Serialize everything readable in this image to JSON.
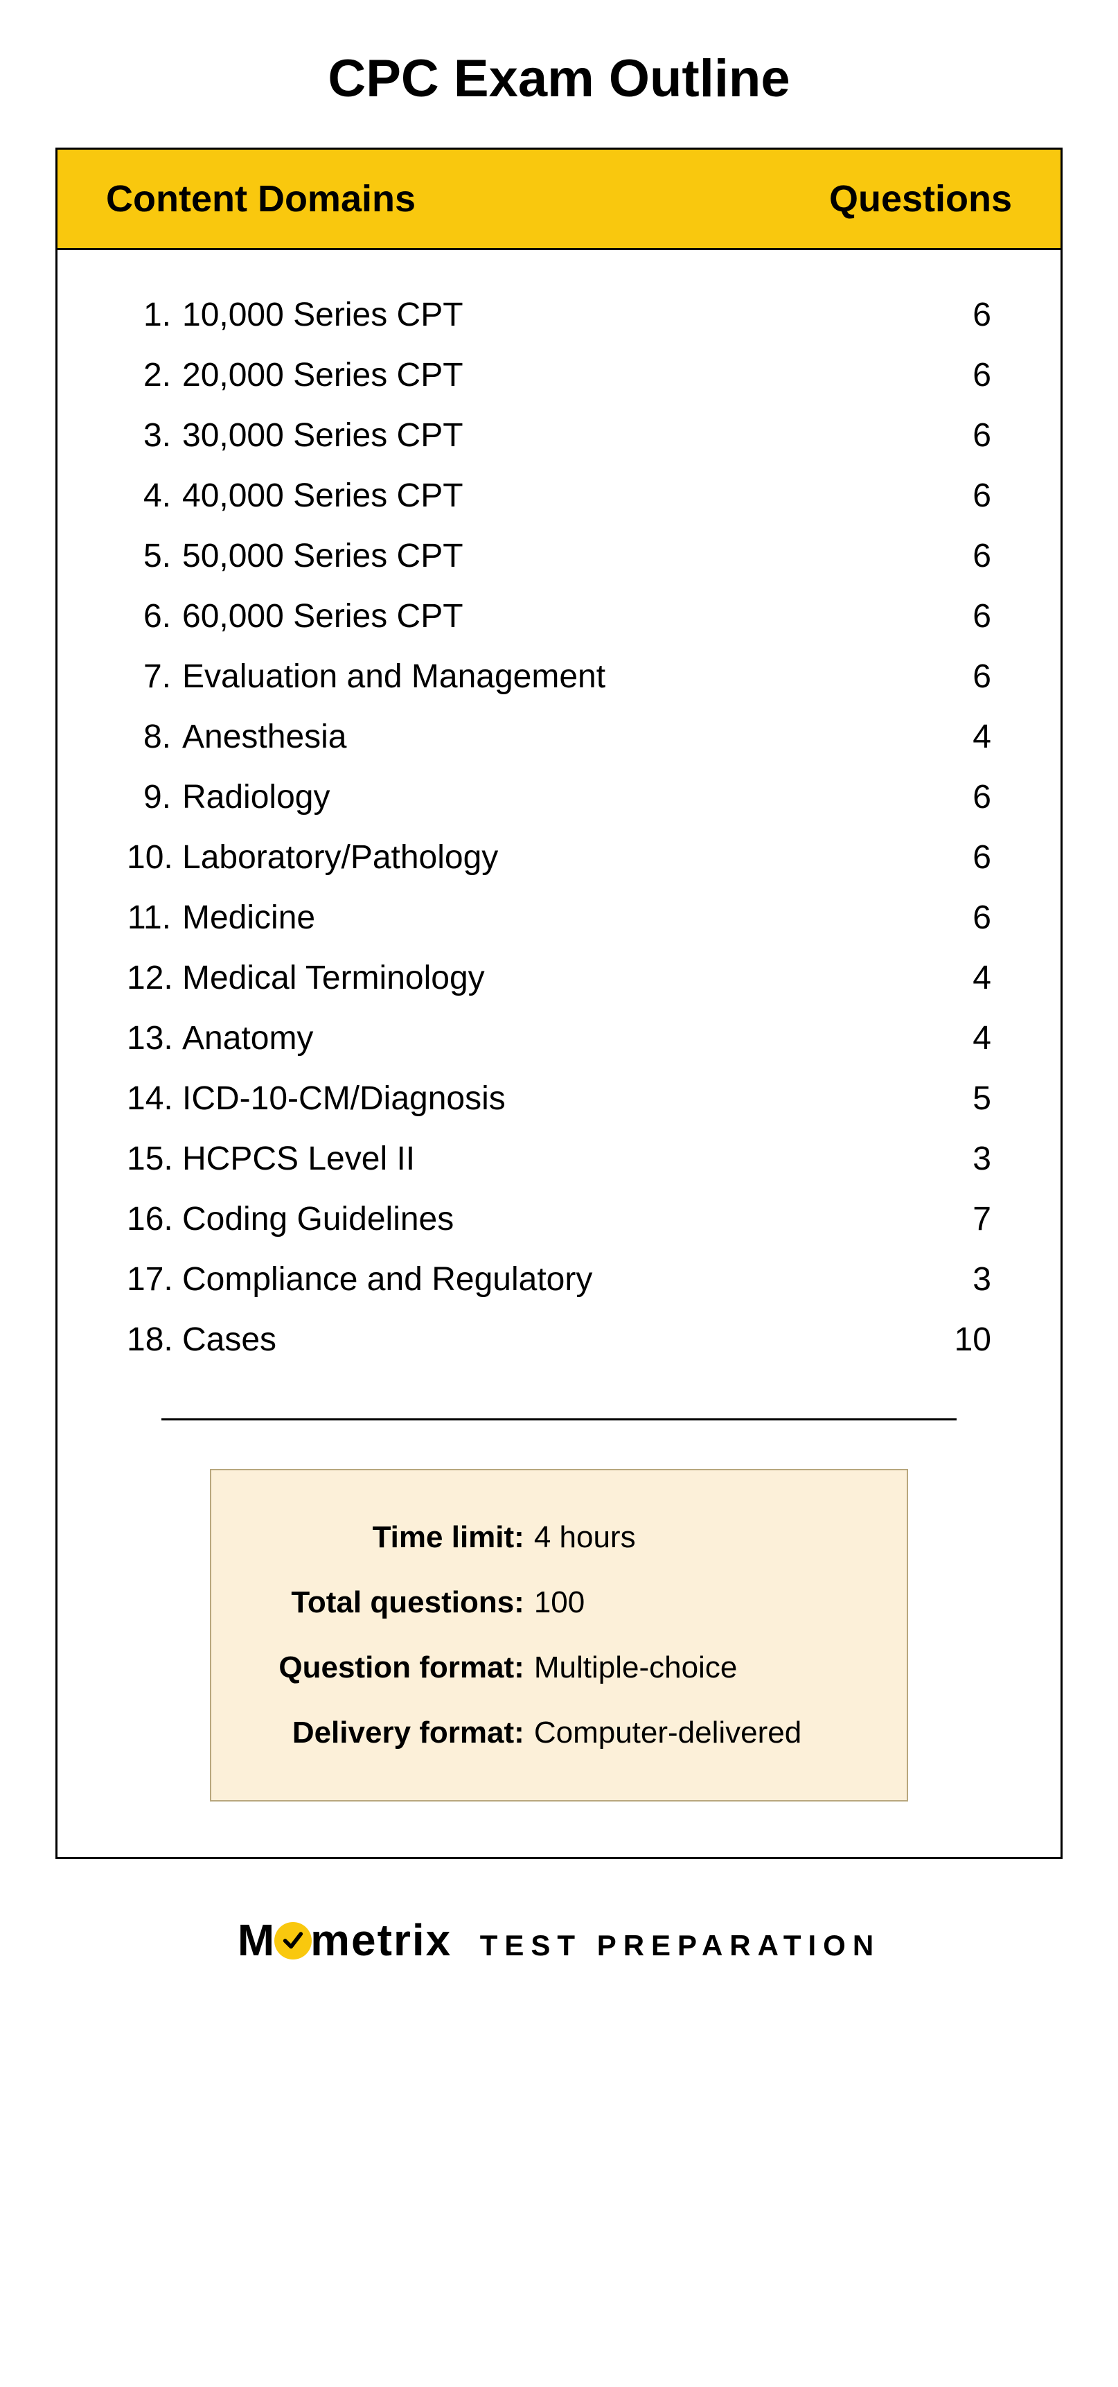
{
  "colors": {
    "header_bg": "#f9c80e",
    "summary_bg": "#fcf0d9",
    "summary_border": "#b8a77e",
    "check_bg": "#f9c80e",
    "text": "#000000"
  },
  "title": "CPC Exam Outline",
  "header": {
    "left": "Content Domains",
    "right": "Questions"
  },
  "domains": [
    {
      "n": "1.",
      "label": "10,000 Series CPT",
      "q": "6"
    },
    {
      "n": "2.",
      "label": "20,000 Series CPT",
      "q": "6"
    },
    {
      "n": "3.",
      "label": "30,000 Series CPT",
      "q": "6"
    },
    {
      "n": "4.",
      "label": "40,000 Series CPT",
      "q": "6"
    },
    {
      "n": "5.",
      "label": "50,000 Series CPT",
      "q": "6"
    },
    {
      "n": "6.",
      "label": "60,000 Series CPT",
      "q": "6"
    },
    {
      "n": "7.",
      "label": "Evaluation and Management",
      "q": "6"
    },
    {
      "n": "8.",
      "label": "Anesthesia",
      "q": "4"
    },
    {
      "n": "9.",
      "label": "Radiology",
      "q": "6"
    },
    {
      "n": "10.",
      "label": "Laboratory/Pathology",
      "q": "6"
    },
    {
      "n": "11.",
      "label": "Medicine",
      "q": "6"
    },
    {
      "n": "12.",
      "label": "Medical Terminology",
      "q": "4"
    },
    {
      "n": "13.",
      "label": "Anatomy",
      "q": "4"
    },
    {
      "n": "14.",
      "label": "ICD-10-CM/Diagnosis",
      "q": "5"
    },
    {
      "n": "15.",
      "label": "HCPCS Level II",
      "q": "3"
    },
    {
      "n": "16.",
      "label": "Coding Guidelines",
      "q": "7"
    },
    {
      "n": "17.",
      "label": "Compliance and Regulatory",
      "q": "3"
    },
    {
      "n": "18.",
      "label": "Cases",
      "q": "10"
    }
  ],
  "summary": [
    {
      "label": "Time limit:",
      "value": "4 hours"
    },
    {
      "label": "Total questions:",
      "value": "100"
    },
    {
      "label": "Question format:",
      "value": "Multiple-choice"
    },
    {
      "label": "Delivery format:",
      "value": "Computer-delivered"
    }
  ],
  "brand": {
    "pre": "M",
    "post": "metrix",
    "sub": "TEST  PREPARATION"
  }
}
